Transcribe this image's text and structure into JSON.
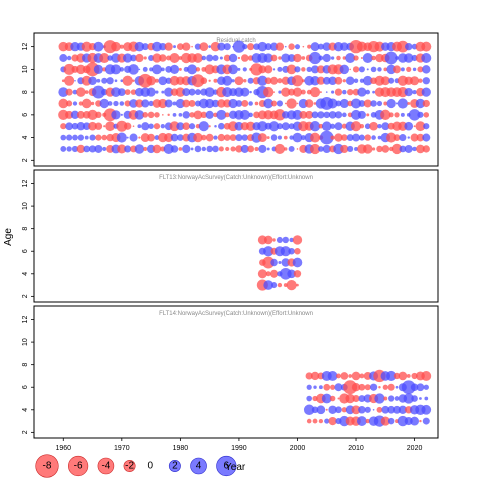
{
  "chart_data": {
    "type": "scatter",
    "subtype": "bubble-residual",
    "xlabel": "Year",
    "ylabel": "Age",
    "xlim": [
      1955,
      2024
    ],
    "x_ticks": [
      1960,
      1970,
      1980,
      1990,
      2000,
      2010,
      2020
    ],
    "y_ticks": [
      2,
      4,
      6,
      8,
      10,
      12
    ],
    "ylim": [
      1.5,
      13.2
    ],
    "colors": {
      "negative": "#ff4d4d",
      "positive": "#4d4dff"
    },
    "legend": {
      "placement": "bottom-left",
      "entries": [
        {
          "label": "-8",
          "value": -8
        },
        {
          "label": "-6",
          "value": -6
        },
        {
          "label": "-4",
          "value": -4
        },
        {
          "label": "-2",
          "value": -2
        },
        {
          "label": "0",
          "value": 0
        },
        {
          "label": "2",
          "value": 2
        },
        {
          "label": "4",
          "value": 4
        },
        {
          "label": "6",
          "value": 6
        }
      ]
    },
    "panels": [
      {
        "title": "Residual catch",
        "years": [
          1960,
          2022
        ],
        "ages": [
          3,
          12
        ]
      },
      {
        "title": "FLT13:NorwayAcSurvey(Catch:Unknown)(Effort:Unknown",
        "years": [
          1994,
          2000
        ],
        "ages": [
          3,
          7
        ]
      },
      {
        "title": "FLT14:NorwayAcSurvey(Catch:Unknown)(Effort:Unknown",
        "years": [
          2002,
          2022
        ],
        "ages": [
          3,
          7
        ]
      }
    ]
  }
}
